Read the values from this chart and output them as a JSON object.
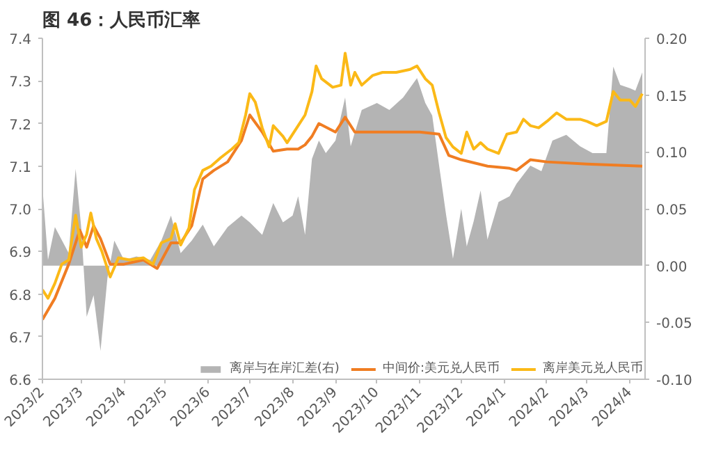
{
  "chart_data": {
    "type": "line",
    "title": "图 46：人民币汇率",
    "xlim": [
      "2023-02-01",
      "2024-04-12"
    ],
    "xticks": [
      {
        "value": "2023-02-01",
        "label": "2023/2"
      },
      {
        "value": "2023-03-01",
        "label": "2023/3"
      },
      {
        "value": "2023-04-01",
        "label": "2023/4"
      },
      {
        "value": "2023-05-01",
        "label": "2023/5"
      },
      {
        "value": "2023-06-01",
        "label": "2023/6"
      },
      {
        "value": "2023-07-01",
        "label": "2023/7"
      },
      {
        "value": "2023-08-01",
        "label": "2023/8"
      },
      {
        "value": "2023-09-01",
        "label": "2023/9"
      },
      {
        "value": "2023-10-01",
        "label": "2023/10"
      },
      {
        "value": "2023-11-01",
        "label": "2023/11"
      },
      {
        "value": "2023-12-01",
        "label": "2023/12"
      },
      {
        "value": "2024-01-01",
        "label": "2024/1"
      },
      {
        "value": "2024-02-01",
        "label": "2024/2"
      },
      {
        "value": "2024-03-01",
        "label": "2024/3"
      },
      {
        "value": "2024-04-01",
        "label": "2024/4"
      }
    ],
    "ylim": [
      6.6,
      7.4
    ],
    "yticks": [
      {
        "value": 6.6,
        "label": "6.6"
      },
      {
        "value": 6.7,
        "label": "6.7"
      },
      {
        "value": 6.8,
        "label": "6.8"
      },
      {
        "value": 6.9,
        "label": "6.9"
      },
      {
        "value": 7.0,
        "label": "7.0"
      },
      {
        "value": 7.1,
        "label": "7.1"
      },
      {
        "value": 7.2,
        "label": "7.2"
      },
      {
        "value": 7.3,
        "label": "7.3"
      },
      {
        "value": 7.4,
        "label": "7.4"
      }
    ],
    "y2lim": [
      -0.1,
      0.2
    ],
    "y2ticks": [
      {
        "value": -0.1,
        "label": "-0.10"
      },
      {
        "value": -0.05,
        "label": "-0.05"
      },
      {
        "value": 0,
        "label": "0.00"
      },
      {
        "value": 0.05,
        "label": "0.05"
      },
      {
        "value": 0.1,
        "label": "0.10"
      },
      {
        "value": 0.15,
        "label": "0.15"
      },
      {
        "value": 0.2,
        "label": "0.20"
      }
    ],
    "grid": false,
    "legend": "bottom",
    "series": [
      {
        "name": "离岸与在岸汇差(右)",
        "type": "area",
        "axis": "y2",
        "color": "#b4b4b4",
        "x": [
          "2023-02-01",
          "2023-02-05",
          "2023-02-10",
          "2023-02-20",
          "2023-02-25",
          "2023-03-01",
          "2023-03-05",
          "2023-03-10",
          "2023-03-15",
          "2023-03-20",
          "2023-03-25",
          "2023-04-01",
          "2023-04-10",
          "2023-04-20",
          "2023-04-28",
          "2023-05-05",
          "2023-05-12",
          "2023-05-20",
          "2023-05-28",
          "2023-06-05",
          "2023-06-15",
          "2023-06-25",
          "2023-07-01",
          "2023-07-10",
          "2023-07-18",
          "2023-07-25",
          "2023-08-01",
          "2023-08-05",
          "2023-08-10",
          "2023-08-15",
          "2023-08-20",
          "2023-08-25",
          "2023-09-01",
          "2023-09-08",
          "2023-09-12",
          "2023-09-20",
          "2023-10-01",
          "2023-10-10",
          "2023-10-20",
          "2023-10-30",
          "2023-11-05",
          "2023-11-10",
          "2023-11-15",
          "2023-11-20",
          "2023-11-25",
          "2023-12-01",
          "2023-12-05",
          "2023-12-10",
          "2023-12-15",
          "2023-12-20",
          "2023-12-28",
          "2024-01-05",
          "2024-01-10",
          "2024-01-20",
          "2024-01-28",
          "2024-02-05",
          "2024-02-15",
          "2024-02-25",
          "2024-03-05",
          "2024-03-15",
          "2024-03-20",
          "2024-03-25",
          "2024-04-01",
          "2024-04-05",
          "2024-04-10"
        ],
        "values": [
          0.069,
          0.005,
          0.034,
          0.011,
          0.085,
          0.034,
          -0.045,
          -0.026,
          -0.075,
          -0.011,
          0.022,
          0.005,
          0.008,
          0.005,
          0.022,
          0.044,
          0.011,
          0.022,
          0.036,
          0.017,
          0.034,
          0.044,
          0.038,
          0.027,
          0.055,
          0.038,
          0.044,
          0.061,
          0.027,
          0.094,
          0.11,
          0.099,
          0.11,
          0.148,
          0.105,
          0.137,
          0.143,
          0.137,
          0.148,
          0.165,
          0.143,
          0.132,
          0.088,
          0.045,
          0.006,
          0.05,
          0.017,
          0.039,
          0.066,
          0.023,
          0.056,
          0.061,
          0.072,
          0.088,
          0.083,
          0.11,
          0.115,
          0.105,
          0.099,
          0.099,
          0.175,
          0.159,
          0.156,
          0.154,
          0.17
        ]
      },
      {
        "name": "中间价:美元兑人民币",
        "type": "line",
        "color": "#f07d22",
        "x": [
          "2023-02-01",
          "2023-02-10",
          "2023-02-20",
          "2023-02-28",
          "2023-03-05",
          "2023-03-10",
          "2023-03-15",
          "2023-03-22",
          "2023-04-01",
          "2023-04-15",
          "2023-04-25",
          "2023-05-05",
          "2023-05-12",
          "2023-05-20",
          "2023-05-28",
          "2023-06-05",
          "2023-06-15",
          "2023-06-25",
          "2023-07-01",
          "2023-07-10",
          "2023-07-18",
          "2023-07-28",
          "2023-08-05",
          "2023-08-10",
          "2023-08-15",
          "2023-08-20",
          "2023-09-01",
          "2023-09-08",
          "2023-09-15",
          "2023-10-01",
          "2023-11-01",
          "2023-11-15",
          "2023-11-22",
          "2023-12-01",
          "2023-12-20",
          "2024-01-05",
          "2024-01-10",
          "2024-01-20",
          "2024-02-01",
          "2024-03-01",
          "2024-04-10"
        ],
        "values": [
          6.74,
          6.79,
          6.87,
          6.95,
          6.91,
          6.96,
          6.93,
          6.87,
          6.87,
          6.88,
          6.86,
          6.92,
          6.92,
          6.96,
          7.07,
          7.09,
          7.11,
          7.16,
          7.22,
          7.18,
          7.135,
          7.14,
          7.14,
          7.15,
          7.17,
          7.2,
          7.18,
          7.215,
          7.18,
          7.18,
          7.18,
          7.175,
          7.125,
          7.115,
          7.1,
          7.095,
          7.09,
          7.115,
          7.11,
          7.105,
          7.1
        ]
      },
      {
        "name": "离岸美元兑人民币",
        "type": "line",
        "color": "#fbb917",
        "x": [
          "2023-02-01",
          "2023-02-05",
          "2023-02-10",
          "2023-02-15",
          "2023-02-20",
          "2023-02-25",
          "2023-03-01",
          "2023-03-05",
          "2023-03-08",
          "2023-03-12",
          "2023-03-16",
          "2023-03-22",
          "2023-03-28",
          "2023-04-05",
          "2023-04-15",
          "2023-04-22",
          "2023-04-28",
          "2023-05-05",
          "2023-05-08",
          "2023-05-12",
          "2023-05-18",
          "2023-05-22",
          "2023-05-28",
          "2023-06-03",
          "2023-06-10",
          "2023-06-18",
          "2023-06-23",
          "2023-06-28",
          "2023-07-01",
          "2023-07-05",
          "2023-07-10",
          "2023-07-15",
          "2023-07-18",
          "2023-07-25",
          "2023-07-28",
          "2023-08-05",
          "2023-08-10",
          "2023-08-15",
          "2023-08-18",
          "2023-08-22",
          "2023-08-30",
          "2023-09-05",
          "2023-09-08",
          "2023-09-12",
          "2023-09-15",
          "2023-09-20",
          "2023-09-28",
          "2023-10-05",
          "2023-10-15",
          "2023-10-25",
          "2023-10-30",
          "2023-11-05",
          "2023-11-10",
          "2023-11-15",
          "2023-11-20",
          "2023-11-25",
          "2023-12-01",
          "2023-12-05",
          "2023-12-10",
          "2023-12-15",
          "2023-12-20",
          "2023-12-28",
          "2024-01-03",
          "2024-01-10",
          "2024-01-15",
          "2024-01-20",
          "2024-01-26",
          "2024-02-01",
          "2024-02-08",
          "2024-02-15",
          "2024-02-25",
          "2024-03-01",
          "2024-03-08",
          "2024-03-15",
          "2024-03-20",
          "2024-03-25",
          "2024-04-01",
          "2024-04-05",
          "2024-04-10"
        ],
        "values": [
          6.81,
          6.79,
          6.825,
          6.87,
          6.88,
          6.985,
          6.91,
          6.94,
          6.99,
          6.93,
          6.9,
          6.84,
          6.885,
          6.88,
          6.885,
          6.87,
          6.92,
          6.93,
          6.965,
          6.915,
          6.955,
          7.045,
          7.09,
          7.1,
          7.12,
          7.14,
          7.155,
          7.22,
          7.27,
          7.25,
          7.19,
          7.145,
          7.195,
          7.17,
          7.155,
          7.195,
          7.22,
          7.275,
          7.335,
          7.305,
          7.285,
          7.29,
          7.365,
          7.29,
          7.32,
          7.29,
          7.313,
          7.32,
          7.32,
          7.327,
          7.335,
          7.305,
          7.29,
          7.225,
          7.167,
          7.145,
          7.13,
          7.18,
          7.14,
          7.155,
          7.14,
          7.13,
          7.175,
          7.18,
          7.21,
          7.195,
          7.19,
          7.205,
          7.225,
          7.21,
          7.21,
          7.205,
          7.195,
          7.205,
          7.275,
          7.255,
          7.255,
          7.24,
          7.27
        ]
      }
    ]
  }
}
